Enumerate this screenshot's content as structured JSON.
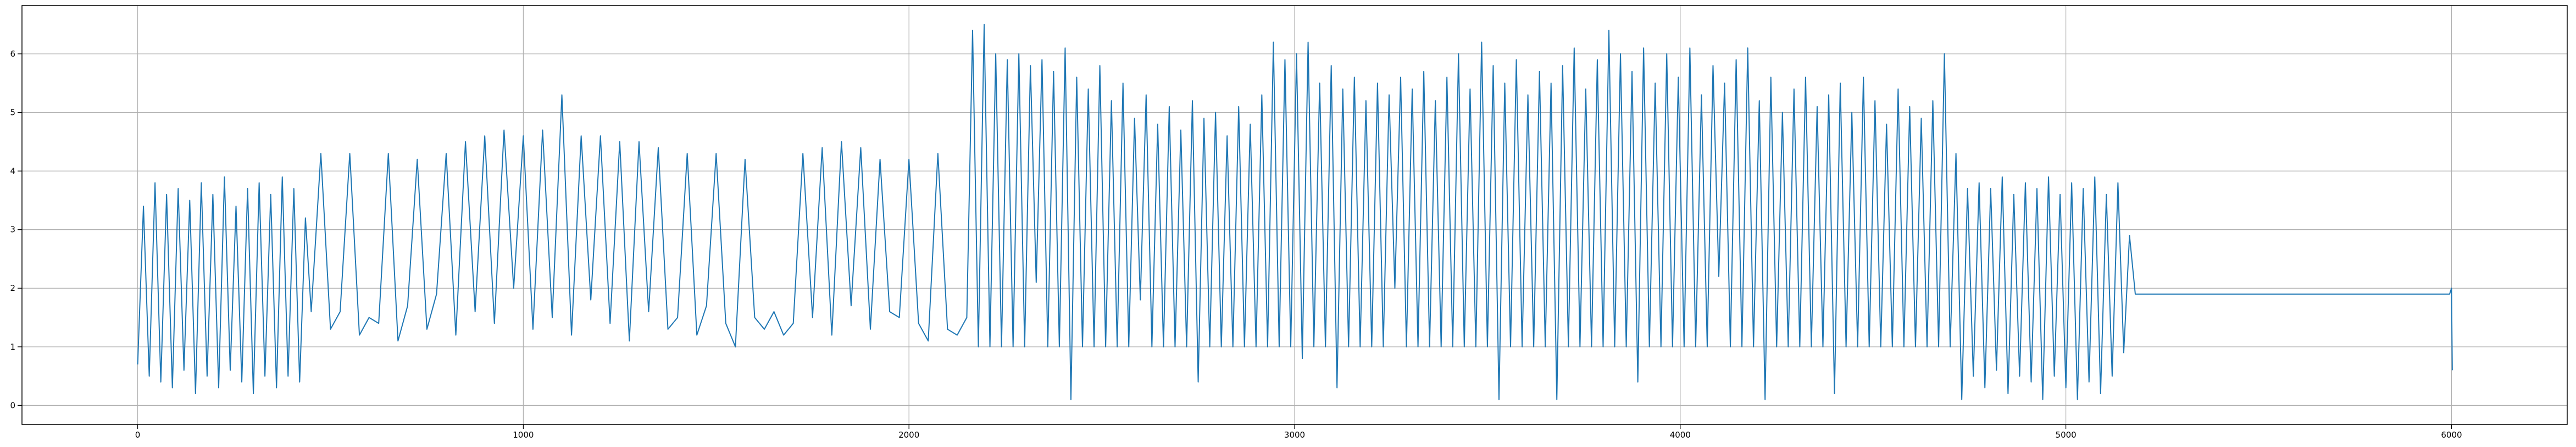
{
  "chart_data": {
    "type": "line",
    "color": "#1f77b4",
    "grid": true,
    "xlim": [
      -300,
      6300
    ],
    "ylim": [
      -0.325,
      6.825
    ],
    "xticks": [
      0,
      1000,
      2000,
      3000,
      4000,
      5000,
      6000
    ],
    "yticks": [
      0,
      1,
      2,
      3,
      4,
      5,
      6
    ],
    "x": [
      0,
      15,
      30,
      45,
      60,
      75,
      90,
      105,
      120,
      135,
      150,
      165,
      180,
      195,
      210,
      225,
      240,
      255,
      270,
      285,
      300,
      315,
      330,
      345,
      360,
      375,
      390,
      405,
      420,
      435,
      450,
      475,
      500,
      525,
      550,
      575,
      600,
      625,
      650,
      675,
      700,
      725,
      750,
      775,
      800,
      825,
      850,
      875,
      900,
      925,
      950,
      975,
      1000,
      1025,
      1050,
      1075,
      1100,
      1125,
      1150,
      1175,
      1200,
      1225,
      1250,
      1275,
      1300,
      1325,
      1350,
      1375,
      1400,
      1425,
      1450,
      1475,
      1500,
      1525,
      1550,
      1575,
      1600,
      1625,
      1650,
      1675,
      1700,
      1725,
      1750,
      1775,
      1800,
      1825,
      1850,
      1875,
      1900,
      1925,
      1950,
      1975,
      2000,
      2025,
      2050,
      2075,
      2100,
      2125,
      2150,
      2165,
      2180,
      2195,
      2210,
      2225,
      2240,
      2255,
      2270,
      2285,
      2300,
      2315,
      2330,
      2345,
      2360,
      2375,
      2390,
      2405,
      2420,
      2435,
      2450,
      2465,
      2480,
      2495,
      2510,
      2525,
      2540,
      2555,
      2570,
      2585,
      2600,
      2615,
      2630,
      2645,
      2660,
      2675,
      2690,
      2705,
      2720,
      2735,
      2750,
      2765,
      2780,
      2795,
      2810,
      2825,
      2840,
      2855,
      2870,
      2885,
      2900,
      2915,
      2930,
      2945,
      2960,
      2975,
      2990,
      3005,
      3020,
      3035,
      3050,
      3065,
      3080,
      3095,
      3110,
      3125,
      3140,
      3155,
      3170,
      3185,
      3200,
      3215,
      3230,
      3245,
      3260,
      3275,
      3290,
      3305,
      3320,
      3335,
      3350,
      3365,
      3380,
      3395,
      3410,
      3425,
      3440,
      3455,
      3470,
      3485,
      3500,
      3515,
      3530,
      3545,
      3560,
      3575,
      3590,
      3605,
      3620,
      3635,
      3650,
      3665,
      3680,
      3695,
      3710,
      3725,
      3740,
      3755,
      3770,
      3785,
      3800,
      3815,
      3830,
      3845,
      3860,
      3875,
      3890,
      3905,
      3920,
      3935,
      3950,
      3965,
      3980,
      3995,
      4010,
      4025,
      4040,
      4055,
      4070,
      4085,
      4100,
      4115,
      4130,
      4145,
      4160,
      4175,
      4190,
      4205,
      4220,
      4235,
      4250,
      4265,
      4280,
      4295,
      4310,
      4325,
      4340,
      4355,
      4370,
      4385,
      4400,
      4415,
      4430,
      4445,
      4460,
      4475,
      4490,
      4505,
      4520,
      4535,
      4550,
      4565,
      4580,
      4595,
      4610,
      4625,
      4640,
      4655,
      4670,
      4685,
      4700,
      4715,
      4730,
      4745,
      4760,
      4775,
      4790,
      4805,
      4820,
      4835,
      4850,
      4865,
      4880,
      4895,
      4910,
      4925,
      4940,
      4955,
      4970,
      4985,
      5000,
      5015,
      5030,
      5045,
      5060,
      5075,
      5090,
      5105,
      5120,
      5135,
      5150,
      5165,
      5180,
      5995,
      6000,
      6002
    ],
    "values": [
      0.7,
      3.4,
      0.5,
      3.8,
      0.4,
      3.6,
      0.3,
      3.7,
      0.6,
      3.5,
      0.2,
      3.8,
      0.5,
      3.6,
      0.3,
      3.9,
      0.6,
      3.4,
      0.4,
      3.7,
      0.2,
      3.8,
      0.5,
      3.6,
      0.3,
      3.9,
      0.5,
      3.7,
      0.4,
      3.2,
      1.6,
      4.3,
      1.3,
      1.6,
      4.3,
      1.2,
      1.5,
      1.4,
      4.3,
      1.1,
      1.7,
      4.2,
      1.3,
      1.9,
      4.3,
      1.2,
      4.5,
      1.6,
      4.6,
      1.4,
      4.7,
      2.0,
      4.6,
      1.3,
      4.7,
      1.5,
      5.3,
      1.2,
      4.6,
      1.8,
      4.6,
      1.4,
      4.5,
      1.1,
      4.5,
      1.6,
      4.4,
      1.3,
      1.5,
      4.3,
      1.2,
      1.7,
      4.3,
      1.4,
      1.0,
      4.2,
      1.5,
      1.3,
      1.6,
      1.2,
      1.4,
      4.3,
      1.5,
      4.4,
      1.2,
      4.5,
      1.7,
      4.4,
      1.3,
      4.2,
      1.6,
      1.5,
      4.2,
      1.4,
      1.1,
      4.3,
      1.3,
      1.2,
      1.5,
      6.4,
      1.0,
      6.5,
      1.0,
      6.0,
      1.0,
      5.9,
      1.0,
      6.0,
      1.0,
      5.8,
      2.1,
      5.9,
      1.0,
      5.7,
      1.0,
      6.1,
      0.1,
      5.6,
      1.0,
      5.4,
      1.0,
      5.8,
      1.0,
      5.2,
      1.0,
      5.5,
      1.0,
      4.9,
      1.8,
      5.3,
      1.0,
      4.8,
      1.0,
      5.1,
      1.0,
      4.7,
      1.0,
      5.2,
      0.4,
      4.9,
      1.0,
      5.0,
      1.0,
      4.6,
      1.0,
      5.1,
      1.0,
      4.8,
      1.0,
      5.3,
      1.0,
      6.2,
      1.0,
      5.9,
      1.0,
      6.0,
      0.8,
      6.2,
      1.0,
      5.5,
      1.0,
      5.8,
      0.3,
      5.4,
      1.0,
      5.6,
      1.0,
      5.2,
      1.0,
      5.5,
      1.0,
      5.3,
      2.0,
      5.6,
      1.0,
      5.4,
      1.0,
      5.7,
      1.0,
      5.2,
      1.0,
      5.6,
      1.0,
      6.0,
      1.0,
      5.4,
      1.0,
      6.2,
      1.0,
      5.8,
      0.1,
      5.5,
      1.0,
      5.9,
      1.0,
      5.3,
      1.0,
      5.7,
      1.0,
      5.5,
      0.1,
      5.8,
      1.0,
      6.1,
      1.0,
      5.4,
      1.0,
      5.9,
      1.0,
      6.4,
      1.0,
      6.0,
      1.0,
      5.7,
      0.4,
      6.1,
      1.0,
      5.5,
      1.0,
      6.0,
      1.0,
      5.6,
      1.0,
      6.1,
      1.0,
      5.3,
      1.0,
      5.8,
      2.2,
      5.5,
      1.0,
      5.9,
      1.0,
      6.1,
      1.0,
      5.2,
      0.1,
      5.6,
      1.0,
      5.0,
      1.0,
      5.4,
      1.0,
      5.6,
      1.0,
      5.1,
      1.0,
      5.3,
      0.2,
      5.5,
      1.0,
      5.0,
      1.0,
      5.6,
      1.0,
      5.2,
      1.0,
      4.8,
      1.0,
      5.4,
      1.0,
      5.1,
      1.0,
      4.9,
      1.0,
      5.2,
      1.0,
      6.0,
      1.0,
      4.3,
      0.1,
      3.7,
      0.5,
      3.8,
      0.3,
      3.7,
      0.6,
      3.9,
      0.2,
      3.6,
      0.5,
      3.8,
      0.4,
      3.7,
      0.1,
      3.9,
      0.5,
      3.6,
      0.3,
      3.8,
      0.1,
      3.7,
      0.4,
      3.9,
      0.2,
      3.6,
      0.5,
      3.8,
      0.9,
      2.9,
      1.9,
      1.9,
      2.0,
      0.6
    ]
  }
}
